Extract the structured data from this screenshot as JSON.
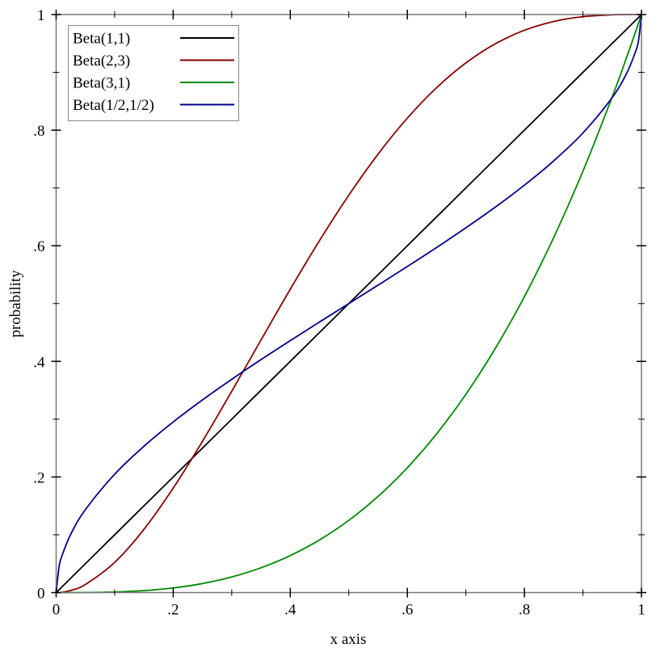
{
  "chart_data": {
    "type": "line",
    "title": "",
    "xlabel": "x axis",
    "ylabel": "probability",
    "xlim": [
      0,
      1
    ],
    "ylim": [
      0,
      1
    ],
    "grid": false,
    "legend_position": "top-left",
    "x_ticks": [
      {
        "v": 0,
        "label": "0"
      },
      {
        "v": 0.2,
        "label": ".2"
      },
      {
        "v": 0.4,
        "label": ".4"
      },
      {
        "v": 0.6,
        "label": ".6"
      },
      {
        "v": 0.8,
        "label": ".8"
      },
      {
        "v": 1,
        "label": "1"
      }
    ],
    "y_ticks": [
      {
        "v": 0,
        "label": "0"
      },
      {
        "v": 0.2,
        "label": ".2"
      },
      {
        "v": 0.4,
        "label": ".4"
      },
      {
        "v": 0.6,
        "label": ".6"
      },
      {
        "v": 0.8,
        "label": ".8"
      },
      {
        "v": 1,
        "label": "1"
      }
    ],
    "minor_ticks": [
      0.1,
      0.3,
      0.5,
      0.7,
      0.9
    ],
    "x": [
      0,
      0.005,
      0.01,
      0.025,
      0.05,
      0.1,
      0.15,
      0.2,
      0.25,
      0.3,
      0.35,
      0.4,
      0.45,
      0.5,
      0.55,
      0.6,
      0.65,
      0.7,
      0.75,
      0.8,
      0.85,
      0.9,
      0.95,
      0.975,
      0.99,
      0.995,
      1
    ],
    "series": [
      {
        "name": "Beta(1,1)",
        "color": "#000000",
        "values": [
          0,
          0.005,
          0.01,
          0.025,
          0.05,
          0.1,
          0.15,
          0.2,
          0.25,
          0.3,
          0.35,
          0.4,
          0.45,
          0.5,
          0.55,
          0.6,
          0.65,
          0.7,
          0.75,
          0.8,
          0.85,
          0.9,
          0.95,
          0.975,
          0.99,
          0.995,
          1
        ]
      },
      {
        "name": "Beta(2,3)",
        "color": "#8b0000",
        "values": [
          0,
          0.000149,
          0.000592,
          0.003626,
          0.014019,
          0.0523,
          0.109519,
          0.1808,
          0.26172,
          0.3483,
          0.437019,
          0.5248,
          0.609019,
          0.6875,
          0.758519,
          0.8208,
          0.873519,
          0.9163,
          0.949219,
          0.9728,
          0.988019,
          0.9963,
          0.999519,
          0.999939,
          0.999996,
          1,
          1
        ]
      },
      {
        "name": "Beta(3,1)",
        "color": "#008b00",
        "values": [
          0,
          1.25e-07,
          1e-06,
          1.5625e-05,
          0.000125,
          0.001,
          0.003375,
          0.008,
          0.015625,
          0.027,
          0.042875,
          0.064,
          0.091125,
          0.125,
          0.166375,
          0.216,
          0.274625,
          0.343,
          0.421875,
          0.512,
          0.614125,
          0.729,
          0.857375,
          0.926859,
          0.970299,
          0.985075,
          1
        ]
      },
      {
        "name": "Beta(1/2,1/2)",
        "color": "#00008b",
        "values": [
          0,
          0.045054,
          0.063769,
          0.101083,
          0.143566,
          0.204833,
          0.253183,
          0.295167,
          0.333333,
          0.368976,
          0.403016,
          0.435906,
          0.468116,
          0.5,
          0.531884,
          0.564094,
          0.596984,
          0.631024,
          0.666667,
          0.704833,
          0.746817,
          0.795167,
          0.856434,
          0.898917,
          0.936231,
          0.954946,
          1
        ]
      }
    ]
  }
}
